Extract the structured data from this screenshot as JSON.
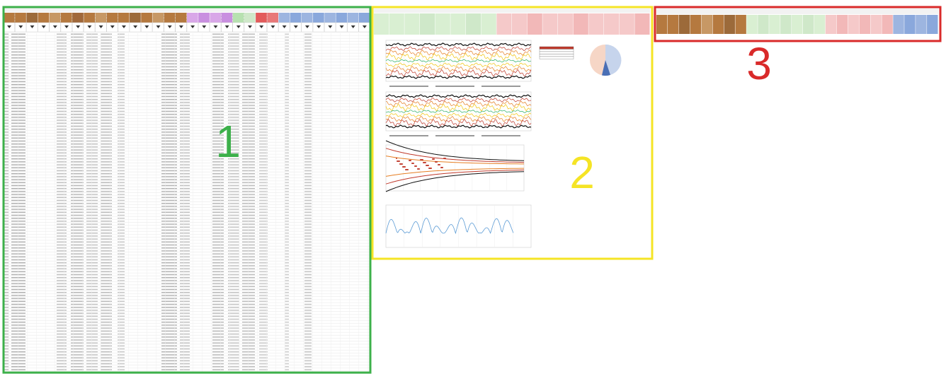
{
  "regions": [
    {
      "label": "1"
    },
    {
      "label": "2"
    },
    {
      "label": "3"
    }
  ]
}
